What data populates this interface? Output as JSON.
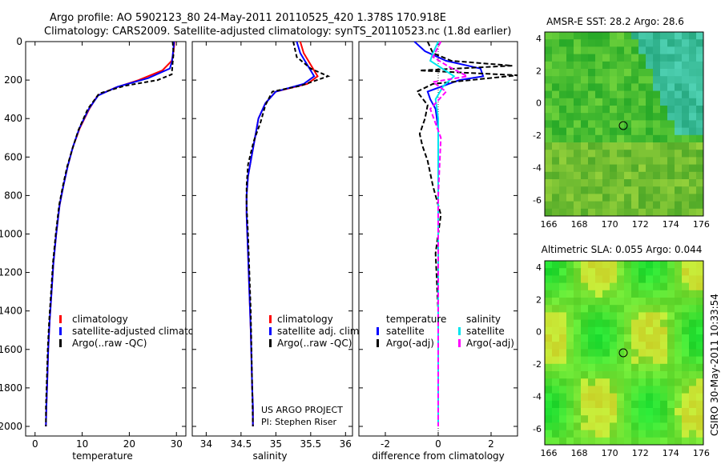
{
  "header": {
    "line1": "Argo profile: AO 5902123_80 24-May-2011 20110525_420 1.378S 170.918E",
    "line2": "Climatology: CARS2009. Satellite-adjusted climatology: synTS_20110523.nc (1.8d earlier)"
  },
  "side_stamp": "CSIRO 30-May-2011 10:33:54",
  "colors": {
    "climatology": "#ff0000",
    "satellite": "#0000ff",
    "argo": "#000000",
    "sal_satellite": "#00e5ee",
    "sal_argo": "#ff00ff"
  },
  "panels": {
    "temperature": {
      "xlabel": "temperature",
      "xticks": [
        "0",
        "10",
        "20",
        "30"
      ],
      "legend": [
        "climatology",
        "satellite-adjusted climatology",
        "Argo(..raw -QC)"
      ]
    },
    "salinity": {
      "xlabel": "salinity",
      "xticks": [
        "34",
        "34.5",
        "35",
        "35.5",
        "36"
      ],
      "legend": [
        "climatology",
        "satellite adj. clim.",
        "Argo(..raw -QC)"
      ],
      "credit1": "US ARGO PROJECT",
      "credit2": "PI: Stephen Riser"
    },
    "difference": {
      "xlabel": "difference from climatology",
      "xticks": [
        "-2",
        "0",
        "2"
      ],
      "leg_head_t": "temperature",
      "leg_head_s": "salinity",
      "leg_items": [
        "satellite",
        "Argo(-adj)",
        "satellite",
        "Argo(-adj)"
      ]
    }
  },
  "yticks": [
    "0",
    "200",
    "400",
    "600",
    "800",
    "1000",
    "1200",
    "1400",
    "1600",
    "1800",
    "2000"
  ],
  "maps": {
    "sst": {
      "title": "AMSR-E SST: 28.2 Argo: 28.6",
      "xticks": [
        "166",
        "168",
        "170",
        "172",
        "174",
        "176"
      ],
      "yticks": [
        "4",
        "2",
        "0",
        "-2",
        "-4",
        "-6"
      ]
    },
    "sla": {
      "title": "Altimetric SLA: 0.055 Argo: 0.044",
      "xticks": [
        "166",
        "168",
        "170",
        "172",
        "174",
        "176"
      ],
      "yticks": [
        "4",
        "2",
        "0",
        "-2",
        "-4",
        "-6"
      ]
    }
  },
  "chart_data": [
    {
      "type": "line",
      "xlabel": "temperature",
      "ylabel": "",
      "xlim": [
        -2,
        32
      ],
      "ylim": [
        2050,
        0
      ],
      "y_reversed": true,
      "series": [
        {
          "name": "climatology",
          "x": [
            29.6,
            29.4,
            29.0,
            27.0,
            22.0,
            17.0,
            13.3,
            11.5,
            9.5,
            8.0,
            6.9,
            6.0,
            5.2,
            4.5,
            3.9,
            3.5,
            3.1,
            2.8,
            2.6,
            2.4,
            2.3
          ],
          "y": [
            0,
            50,
            100,
            150,
            200,
            240,
            280,
            350,
            450,
            550,
            650,
            750,
            850,
            1000,
            1150,
            1300,
            1450,
            1600,
            1750,
            1900,
            2000
          ]
        },
        {
          "name": "satellite-adjusted climatology",
          "x": [
            29.5,
            29.3,
            29.1,
            28.6,
            24.0,
            17.5,
            13.4,
            11.4,
            9.4,
            8.0,
            6.9,
            6.0,
            5.2,
            4.5,
            3.9,
            3.5,
            3.1,
            2.8,
            2.6,
            2.4,
            2.3
          ],
          "y": [
            0,
            50,
            100,
            140,
            190,
            235,
            280,
            350,
            450,
            550,
            650,
            750,
            850,
            1000,
            1150,
            1300,
            1450,
            1600,
            1750,
            1900,
            2000
          ]
        },
        {
          "name": "Argo(..raw -QC)",
          "x": [
            29.2,
            29.4,
            29.2,
            29.0,
            26.0,
            19.0,
            13.6,
            11.2,
            9.2,
            7.9,
            6.8,
            5.9,
            5.1,
            4.4,
            3.8,
            3.4,
            3.0,
            2.7,
            2.5,
            2.3,
            2.3
          ],
          "y": [
            0,
            60,
            110,
            170,
            200,
            230,
            270,
            350,
            460,
            560,
            650,
            750,
            850,
            1000,
            1150,
            1300,
            1450,
            1600,
            1750,
            1900,
            2000
          ]
        }
      ]
    },
    {
      "type": "line",
      "xlabel": "salinity",
      "ylabel": "",
      "xlim": [
        33.8,
        36.1
      ],
      "ylim": [
        2050,
        0
      ],
      "y_reversed": true,
      "series": [
        {
          "name": "climatology",
          "x": [
            35.35,
            35.4,
            35.5,
            35.6,
            35.45,
            35.0,
            34.85,
            34.75,
            34.7,
            34.65,
            34.6,
            34.58,
            34.58,
            34.6,
            34.62,
            34.64,
            34.65,
            34.66,
            34.67,
            34.67
          ],
          "y": [
            0,
            60,
            120,
            180,
            220,
            260,
            320,
            400,
            500,
            600,
            700,
            800,
            900,
            1100,
            1300,
            1500,
            1650,
            1800,
            1900,
            2000
          ]
        },
        {
          "name": "satellite adj. clim.",
          "x": [
            35.3,
            35.35,
            35.45,
            35.55,
            35.4,
            35.0,
            34.85,
            34.75,
            34.7,
            34.65,
            34.6,
            34.58,
            34.58,
            34.6,
            34.62,
            34.64,
            34.65,
            34.66,
            34.67,
            34.67
          ],
          "y": [
            0,
            60,
            120,
            180,
            220,
            260,
            320,
            400,
            500,
            600,
            700,
            800,
            900,
            1100,
            1300,
            1500,
            1650,
            1800,
            1900,
            2000
          ]
        },
        {
          "name": "Argo(..raw -QC)",
          "x": [
            35.25,
            35.3,
            35.5,
            35.75,
            35.35,
            34.95,
            34.85,
            34.78,
            34.68,
            34.6,
            34.58,
            34.58,
            34.6,
            34.62,
            34.64,
            34.65,
            34.66,
            34.67
          ],
          "y": [
            0,
            80,
            140,
            180,
            230,
            260,
            330,
            420,
            520,
            640,
            750,
            850,
            1000,
            1200,
            1400,
            1600,
            1800,
            2000
          ]
        }
      ]
    },
    {
      "type": "line",
      "xlabel": "difference from climatology",
      "ylabel": "",
      "xlim": [
        -3,
        3
      ],
      "ylim": [
        2050,
        0
      ],
      "y_reversed": true,
      "series": [
        {
          "name": "temperature satellite",
          "x": [
            -0.9,
            -0.5,
            0.3,
            1.6,
            1.7,
            0.8,
            0.2,
            -0.4,
            -0.3,
            -0.1,
            0.0,
            0.0,
            0.0,
            0.0
          ],
          "y": [
            0,
            50,
            100,
            140,
            180,
            200,
            230,
            260,
            300,
            350,
            450,
            800,
            1400,
            2000
          ]
        },
        {
          "name": "temperature Argo(-adj)",
          "x": [
            -0.4,
            -0.2,
            0.5,
            2.8,
            -0.7,
            3.0,
            -0.2,
            -0.8,
            -0.4,
            -0.5,
            -0.7,
            -0.6,
            -0.4,
            -0.2,
            0.1,
            -0.1,
            0.0,
            0.0
          ],
          "y": [
            0,
            60,
            100,
            125,
            150,
            175,
            220,
            260,
            330,
            400,
            480,
            540,
            620,
            750,
            900,
            1100,
            1400,
            2000
          ]
        },
        {
          "name": "salinity satellite",
          "x": [
            0.0,
            -0.2,
            -0.3,
            0.6,
            0.2,
            -0.1,
            0.0,
            0.0,
            0.0,
            0.0
          ],
          "y": [
            0,
            60,
            100,
            180,
            230,
            300,
            400,
            700,
            1200,
            2000
          ]
        },
        {
          "name": "salinity Argo(-adj)",
          "x": [
            0.1,
            -0.2,
            0.4,
            1.1,
            -0.2,
            0.3,
            -0.3,
            0.1,
            0.0,
            0.0
          ],
          "y": [
            0,
            80,
            130,
            180,
            210,
            260,
            350,
            500,
            800,
            2000
          ]
        }
      ]
    }
  ]
}
